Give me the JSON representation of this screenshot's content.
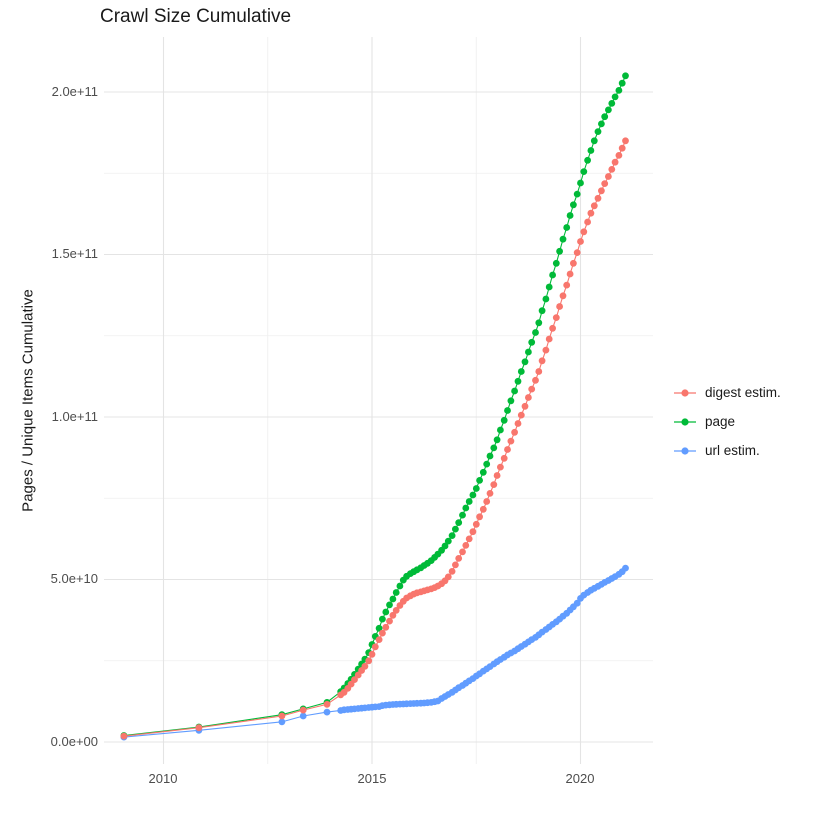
{
  "title": "Crawl Size Cumulative",
  "chart_data": {
    "type": "line",
    "markers": true,
    "title": "Crawl Size Cumulative",
    "xlabel": "",
    "ylabel": "Pages / Unique Items Cumulative",
    "grid": true,
    "legend_position": "right",
    "x_domain": [
      2008.57,
      2021.74
    ],
    "y_domain_e9": [
      -7.4,
      215.6
    ],
    "y_values_scale": "1e9 (values below are billions of pages / items)",
    "x_ticks": [
      {
        "value": 2010,
        "label": "2010"
      },
      {
        "value": 2015,
        "label": "2015"
      },
      {
        "value": 2020,
        "label": "2020"
      }
    ],
    "x_minor_ticks": [
      2012.5,
      2017.5
    ],
    "y_ticks": [
      {
        "value": 0,
        "label": "0.0e+00"
      },
      {
        "value": 50,
        "label": "5.0e+10"
      },
      {
        "value": 100,
        "label": "1.0e+11"
      },
      {
        "value": 150,
        "label": "1.5e+11"
      },
      {
        "value": 200,
        "label": "2.0e+11"
      }
    ],
    "y_minor_ticks": [
      25,
      75,
      125,
      175
    ],
    "colors": {
      "digest": "#F8766D",
      "page": "#00BA38",
      "url": "#619CFF",
      "grid_major": "#e4e4e4",
      "grid_minor": "#efefef",
      "tick_text": "#4d4d4d",
      "title_text": "#1a1a1a"
    },
    "series": [
      {
        "name": "digest estim.",
        "color": "#F8766D",
        "z": 2,
        "points": [
          [
            2009.05,
            1.8
          ],
          [
            2010.85,
            4.4
          ],
          [
            2012.84,
            8.0
          ],
          [
            2013.35,
            9.8
          ],
          [
            2013.92,
            11.6
          ],
          [
            2014.25,
            14.5
          ],
          [
            2014.33,
            15.3
          ],
          [
            2014.42,
            16.5
          ],
          [
            2014.5,
            17.8
          ],
          [
            2014.58,
            19.2
          ],
          [
            2014.67,
            20.6
          ],
          [
            2014.75,
            22.0
          ],
          [
            2014.83,
            23.3
          ],
          [
            2014.92,
            25.0
          ],
          [
            2015.0,
            27.0
          ],
          [
            2015.08,
            29.3
          ],
          [
            2015.17,
            31.5
          ],
          [
            2015.25,
            33.5
          ],
          [
            2015.33,
            35.3
          ],
          [
            2015.42,
            37.2
          ],
          [
            2015.5,
            39.0
          ],
          [
            2015.58,
            40.5
          ],
          [
            2015.67,
            42.0
          ],
          [
            2015.75,
            43.3
          ],
          [
            2015.83,
            44.3
          ],
          [
            2015.92,
            45.0
          ],
          [
            2016.0,
            45.5
          ],
          [
            2016.08,
            45.9
          ],
          [
            2016.17,
            46.2
          ],
          [
            2016.25,
            46.5
          ],
          [
            2016.33,
            46.8
          ],
          [
            2016.42,
            47.1
          ],
          [
            2016.5,
            47.5
          ],
          [
            2016.58,
            48.0
          ],
          [
            2016.67,
            48.7
          ],
          [
            2016.75,
            49.6
          ],
          [
            2016.83,
            50.8
          ],
          [
            2016.92,
            52.5
          ],
          [
            2017.0,
            54.5
          ],
          [
            2017.08,
            56.5
          ],
          [
            2017.17,
            58.5
          ],
          [
            2017.25,
            60.5
          ],
          [
            2017.33,
            62.5
          ],
          [
            2017.42,
            64.7
          ],
          [
            2017.5,
            67.0
          ],
          [
            2017.58,
            69.3
          ],
          [
            2017.67,
            71.6
          ],
          [
            2017.75,
            74.0
          ],
          [
            2017.83,
            76.5
          ],
          [
            2017.92,
            79.2
          ],
          [
            2018.0,
            82.0
          ],
          [
            2018.08,
            84.6
          ],
          [
            2018.17,
            87.3
          ],
          [
            2018.25,
            90.0
          ],
          [
            2018.33,
            92.6
          ],
          [
            2018.42,
            95.3
          ],
          [
            2018.5,
            98.0
          ],
          [
            2018.58,
            100.6
          ],
          [
            2018.67,
            103.3
          ],
          [
            2018.75,
            106.0
          ],
          [
            2018.83,
            108.6
          ],
          [
            2018.92,
            111.3
          ],
          [
            2019.0,
            114.0
          ],
          [
            2019.08,
            117.3
          ],
          [
            2019.17,
            120.6
          ],
          [
            2019.25,
            124.0
          ],
          [
            2019.33,
            127.3
          ],
          [
            2019.42,
            130.6
          ],
          [
            2019.5,
            134.0
          ],
          [
            2019.58,
            137.3
          ],
          [
            2019.67,
            140.6
          ],
          [
            2019.75,
            144.0
          ],
          [
            2019.83,
            147.3
          ],
          [
            2019.92,
            150.6
          ],
          [
            2020.0,
            154.0
          ],
          [
            2020.08,
            157.0
          ],
          [
            2020.17,
            160.0
          ],
          [
            2020.25,
            162.7
          ],
          [
            2020.33,
            165.0
          ],
          [
            2020.42,
            167.3
          ],
          [
            2020.5,
            169.6
          ],
          [
            2020.58,
            171.8
          ],
          [
            2020.67,
            174.0
          ],
          [
            2020.75,
            176.2
          ],
          [
            2020.83,
            178.4
          ],
          [
            2020.92,
            180.5
          ],
          [
            2021.0,
            182.7
          ],
          [
            2021.08,
            185.0
          ]
        ]
      },
      {
        "name": "page",
        "color": "#00BA38",
        "z": 0,
        "points": [
          [
            2009.05,
            2.0
          ],
          [
            2010.85,
            4.6
          ],
          [
            2012.84,
            8.4
          ],
          [
            2013.35,
            10.2
          ],
          [
            2013.92,
            12.2
          ],
          [
            2014.25,
            15.5
          ],
          [
            2014.33,
            16.6
          ],
          [
            2014.42,
            18.0
          ],
          [
            2014.5,
            19.3
          ],
          [
            2014.58,
            20.8
          ],
          [
            2014.67,
            22.4
          ],
          [
            2014.75,
            24.0
          ],
          [
            2014.83,
            25.5
          ],
          [
            2014.92,
            27.5
          ],
          [
            2015.0,
            30.0
          ],
          [
            2015.08,
            32.5
          ],
          [
            2015.17,
            35.0
          ],
          [
            2015.25,
            37.8
          ],
          [
            2015.33,
            40.0
          ],
          [
            2015.42,
            42.2
          ],
          [
            2015.5,
            44.0
          ],
          [
            2015.58,
            46.0
          ],
          [
            2015.67,
            48.0
          ],
          [
            2015.75,
            49.8
          ],
          [
            2015.83,
            51.0
          ],
          [
            2015.92,
            51.8
          ],
          [
            2016.0,
            52.4
          ],
          [
            2016.08,
            53.0
          ],
          [
            2016.17,
            53.6
          ],
          [
            2016.25,
            54.3
          ],
          [
            2016.33,
            55.0
          ],
          [
            2016.42,
            55.8
          ],
          [
            2016.5,
            56.8
          ],
          [
            2016.58,
            57.8
          ],
          [
            2016.67,
            59.0
          ],
          [
            2016.75,
            60.3
          ],
          [
            2016.83,
            61.8
          ],
          [
            2016.92,
            63.5
          ],
          [
            2017.0,
            65.5
          ],
          [
            2017.08,
            67.5
          ],
          [
            2017.17,
            69.8
          ],
          [
            2017.25,
            72.0
          ],
          [
            2017.33,
            74.0
          ],
          [
            2017.42,
            76.0
          ],
          [
            2017.5,
            78.0
          ],
          [
            2017.58,
            80.5
          ],
          [
            2017.67,
            83.0
          ],
          [
            2017.75,
            85.5
          ],
          [
            2017.83,
            88.0
          ],
          [
            2017.92,
            90.5
          ],
          [
            2018.0,
            93.0
          ],
          [
            2018.08,
            96.0
          ],
          [
            2018.17,
            99.0
          ],
          [
            2018.25,
            102.0
          ],
          [
            2018.33,
            105.0
          ],
          [
            2018.42,
            108.0
          ],
          [
            2018.5,
            111.0
          ],
          [
            2018.58,
            114.0
          ],
          [
            2018.67,
            117.0
          ],
          [
            2018.75,
            120.0
          ],
          [
            2018.83,
            123.0
          ],
          [
            2018.92,
            126.0
          ],
          [
            2019.0,
            129.0
          ],
          [
            2019.08,
            132.7
          ],
          [
            2019.17,
            136.3
          ],
          [
            2019.25,
            140.0
          ],
          [
            2019.33,
            143.7
          ],
          [
            2019.42,
            147.3
          ],
          [
            2019.5,
            151.0
          ],
          [
            2019.58,
            154.7
          ],
          [
            2019.67,
            158.3
          ],
          [
            2019.75,
            162.0
          ],
          [
            2019.83,
            165.3
          ],
          [
            2019.92,
            168.6
          ],
          [
            2020.0,
            172.0
          ],
          [
            2020.08,
            175.5
          ],
          [
            2020.17,
            179.0
          ],
          [
            2020.25,
            182.0
          ],
          [
            2020.33,
            185.0
          ],
          [
            2020.42,
            187.8
          ],
          [
            2020.5,
            190.2
          ],
          [
            2020.58,
            192.4
          ],
          [
            2020.67,
            194.5
          ],
          [
            2020.75,
            196.5
          ],
          [
            2020.83,
            198.5
          ],
          [
            2020.92,
            200.5
          ],
          [
            2021.0,
            202.7
          ],
          [
            2021.08,
            205.0
          ]
        ]
      },
      {
        "name": "url estim.",
        "color": "#619CFF",
        "z": 1,
        "points": [
          [
            2009.05,
            1.5
          ],
          [
            2010.85,
            3.6
          ],
          [
            2012.84,
            6.2
          ],
          [
            2013.35,
            8.0
          ],
          [
            2013.92,
            9.2
          ],
          [
            2014.25,
            9.7
          ],
          [
            2014.33,
            9.9
          ],
          [
            2014.42,
            10.0
          ],
          [
            2014.5,
            10.1
          ],
          [
            2014.58,
            10.2
          ],
          [
            2014.67,
            10.3
          ],
          [
            2014.75,
            10.4
          ],
          [
            2014.83,
            10.5
          ],
          [
            2014.92,
            10.6
          ],
          [
            2015.0,
            10.7
          ],
          [
            2015.08,
            10.8
          ],
          [
            2015.17,
            10.9
          ],
          [
            2015.25,
            11.2
          ],
          [
            2015.33,
            11.35
          ],
          [
            2015.42,
            11.45
          ],
          [
            2015.5,
            11.55
          ],
          [
            2015.58,
            11.6
          ],
          [
            2015.67,
            11.65
          ],
          [
            2015.75,
            11.7
          ],
          [
            2015.83,
            11.75
          ],
          [
            2015.92,
            11.8
          ],
          [
            2016.0,
            11.85
          ],
          [
            2016.08,
            11.9
          ],
          [
            2016.17,
            11.95
          ],
          [
            2016.25,
            12.0
          ],
          [
            2016.33,
            12.1
          ],
          [
            2016.42,
            12.2
          ],
          [
            2016.5,
            12.4
          ],
          [
            2016.58,
            12.6
          ],
          [
            2016.67,
            13.4
          ],
          [
            2016.75,
            14.0
          ],
          [
            2016.83,
            14.6
          ],
          [
            2016.92,
            15.3
          ],
          [
            2017.0,
            16.0
          ],
          [
            2017.08,
            16.7
          ],
          [
            2017.17,
            17.4
          ],
          [
            2017.25,
            18.1
          ],
          [
            2017.33,
            18.8
          ],
          [
            2017.42,
            19.5
          ],
          [
            2017.5,
            20.3
          ],
          [
            2017.58,
            21.0
          ],
          [
            2017.67,
            21.8
          ],
          [
            2017.75,
            22.5
          ],
          [
            2017.83,
            23.2
          ],
          [
            2017.92,
            24.0
          ],
          [
            2018.0,
            24.7
          ],
          [
            2018.08,
            25.4
          ],
          [
            2018.17,
            26.1
          ],
          [
            2018.25,
            26.8
          ],
          [
            2018.33,
            27.4
          ],
          [
            2018.42,
            28.0
          ],
          [
            2018.5,
            28.7
          ],
          [
            2018.58,
            29.4
          ],
          [
            2018.67,
            30.1
          ],
          [
            2018.75,
            30.8
          ],
          [
            2018.83,
            31.5
          ],
          [
            2018.92,
            32.2
          ],
          [
            2019.0,
            33.0
          ],
          [
            2019.08,
            33.8
          ],
          [
            2019.17,
            34.6
          ],
          [
            2019.25,
            35.4
          ],
          [
            2019.33,
            36.2
          ],
          [
            2019.42,
            37.0
          ],
          [
            2019.5,
            37.8
          ],
          [
            2019.58,
            38.7
          ],
          [
            2019.67,
            39.6
          ],
          [
            2019.75,
            40.6
          ],
          [
            2019.83,
            41.6
          ],
          [
            2019.92,
            42.7
          ],
          [
            2020.0,
            44.2
          ],
          [
            2020.08,
            45.2
          ],
          [
            2020.17,
            46.0
          ],
          [
            2020.25,
            46.7
          ],
          [
            2020.33,
            47.3
          ],
          [
            2020.42,
            47.9
          ],
          [
            2020.5,
            48.5
          ],
          [
            2020.58,
            49.1
          ],
          [
            2020.67,
            49.7
          ],
          [
            2020.75,
            50.3
          ],
          [
            2020.83,
            50.9
          ],
          [
            2020.92,
            51.6
          ],
          [
            2021.0,
            52.4
          ],
          [
            2021.08,
            53.5
          ]
        ]
      }
    ]
  }
}
